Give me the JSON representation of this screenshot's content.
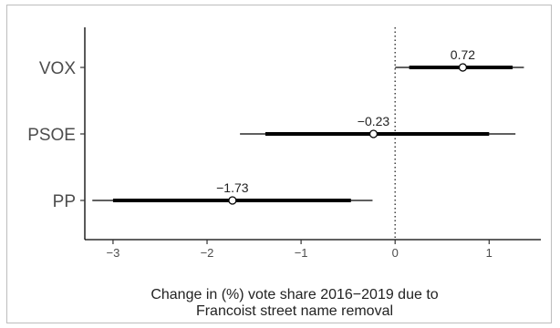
{
  "chart_data": {
    "type": "coefficient-interval",
    "xlabel": [
      "Change in (%) vote share 2016−2019 due to",
      "Francoist street name removal"
    ],
    "ylabel": "",
    "xlim": [
      -3.3,
      1.55
    ],
    "xticks": [
      -3,
      -2,
      -1,
      0,
      1
    ],
    "xtick_labels": [
      "−3",
      "−2",
      "−1",
      "0",
      "1"
    ],
    "reference_line": 0,
    "categories": [
      "VOX",
      "PSOE",
      "PP"
    ],
    "points": [
      {
        "category": "VOX",
        "estimate": 0.72,
        "label": "0.72",
        "inner": [
          0.15,
          1.25
        ],
        "outer": [
          0.0,
          1.37
        ]
      },
      {
        "category": "PSOE",
        "estimate": -0.23,
        "label": "−0.23",
        "inner": [
          -1.38,
          1.0
        ],
        "outer": [
          -1.65,
          1.28
        ]
      },
      {
        "category": "PP",
        "estimate": -1.73,
        "label": "−1.73",
        "inner": [
          -3.0,
          -0.47
        ],
        "outer": [
          -3.22,
          -0.24
        ]
      }
    ],
    "grid": false,
    "legend": "none"
  }
}
